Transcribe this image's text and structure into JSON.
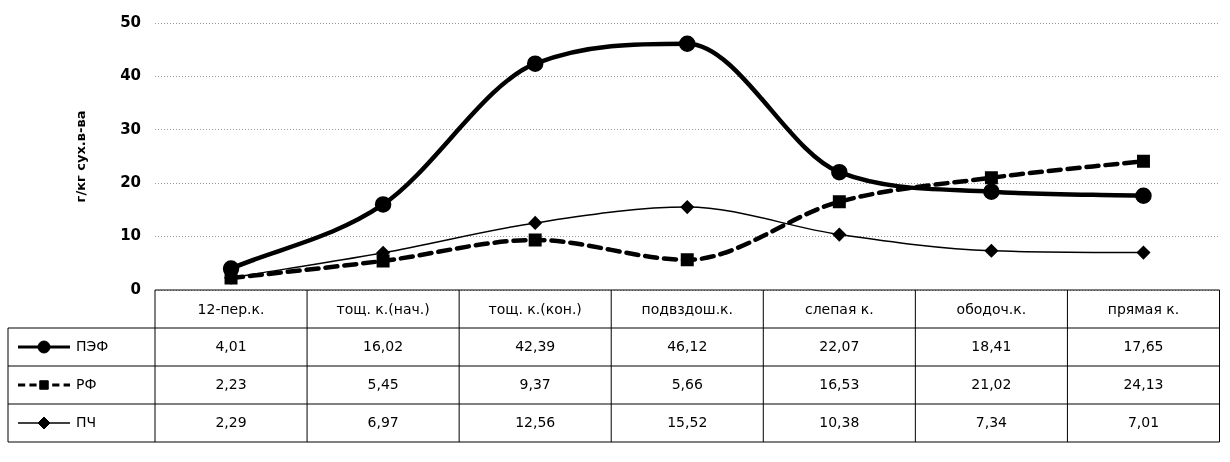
{
  "chart_data": {
    "type": "line",
    "ylabel": "г/кг сух.в-ва",
    "categories": [
      "12-пер.к.",
      "тощ. к.(нач.)",
      "тощ. к.(кон.)",
      "подвздош.к.",
      "слепая к.",
      "ободоч.к.",
      "прямая к."
    ],
    "ylim": [
      0,
      50
    ],
    "yticks": [
      0,
      10,
      20,
      30,
      40,
      50
    ],
    "grid": "y",
    "legend": "bottom",
    "data_labels": true,
    "series": [
      {
        "name": "ПЭФ",
        "color": "#000000",
        "marker": "circle",
        "line_style": "solid",
        "values": [
          4.01,
          16.02,
          42.39,
          46.12,
          22.07,
          18.41,
          17.65
        ],
        "value_labels": [
          "4,01",
          "16,02",
          "42,39",
          "46,12",
          "22,07",
          "18,41",
          "17,65"
        ]
      },
      {
        "name": "РФ",
        "color": "#000000",
        "marker": "square",
        "line_style": "dashed",
        "values": [
          2.23,
          5.45,
          9.37,
          5.66,
          16.53,
          21.02,
          24.13
        ],
        "value_labels": [
          "2,23",
          "5,45",
          "9,37",
          "5,66",
          "16,53",
          "21,02",
          "24,13"
        ]
      },
      {
        "name": "ПЧ",
        "color": "#000000",
        "marker": "diamond",
        "line_style": "solid",
        "values": [
          2.29,
          6.97,
          12.56,
          15.52,
          10.38,
          7.34,
          7.01
        ],
        "value_labels": [
          "2,29",
          "6,97",
          "12,56",
          "15,52",
          "10,38",
          "7,34",
          "7,01"
        ]
      }
    ]
  }
}
